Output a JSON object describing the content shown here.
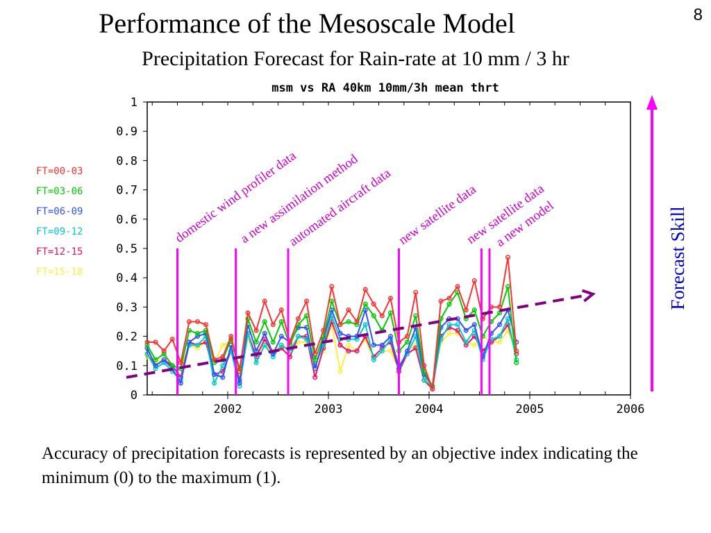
{
  "slide": {
    "title": "Performance of the Mesoscale Model",
    "subtitle": "Precipitation Forecast for Rain-rate at 10 mm / 3 hr",
    "page_number": "8",
    "caption": "Accuracy of precipitation forecasts is represented by an objective index indicating the minimum (0) to the maximum (1).",
    "forecast_skill_label": "Forecast Skill",
    "colors": {
      "events": "#ff00ff",
      "annotation": "#cc00cc",
      "trend": "#800080",
      "skill_arrow": "#ff00ff",
      "skill_text": "#0000cc"
    }
  },
  "chart_data": {
    "type": "line",
    "title": "msm vs RA 40km 10mm/3h mean thrt",
    "xlim": [
      2001.2,
      2006.0
    ],
    "ylim": [
      0,
      1
    ],
    "x_ticks": [
      2002,
      2003,
      2004,
      2005,
      2006
    ],
    "y_ticks": [
      0,
      0.1,
      0.2,
      0.3,
      0.4,
      0.5,
      0.6,
      0.7,
      0.8,
      0.9,
      1
    ],
    "legend_position": "left",
    "x": [
      2001.2,
      2001.283,
      2001.367,
      2001.45,
      2001.533,
      2001.617,
      2001.7,
      2001.783,
      2001.867,
      2001.95,
      2002.033,
      2002.117,
      2002.2,
      2002.283,
      2002.367,
      2002.45,
      2002.533,
      2002.617,
      2002.7,
      2002.783,
      2002.867,
      2002.95,
      2003.033,
      2003.117,
      2003.2,
      2003.283,
      2003.367,
      2003.45,
      2003.533,
      2003.617,
      2003.7,
      2003.783,
      2003.867,
      2003.95,
      2004.033,
      2004.117,
      2004.2,
      2004.283,
      2004.367,
      2004.45,
      2004.533,
      2004.617,
      2004.7,
      2004.783,
      2004.867
    ],
    "series": [
      {
        "name": "FT=00-03",
        "color": "#ff3030",
        "values": [
          0.18,
          0.18,
          0.15,
          0.19,
          0.11,
          0.25,
          0.25,
          0.24,
          0.12,
          0.13,
          0.2,
          0.08,
          0.28,
          0.22,
          0.32,
          0.24,
          0.29,
          0.18,
          0.26,
          0.32,
          0.14,
          0.22,
          0.37,
          0.24,
          0.29,
          0.25,
          0.36,
          0.31,
          0.27,
          0.33,
          0.18,
          0.2,
          0.35,
          0.1,
          0.02,
          0.32,
          0.33,
          0.37,
          0.29,
          0.39,
          0.26,
          0.3,
          0.3,
          0.47,
          0.15
        ]
      },
      {
        "name": "FT=03-06",
        "color": "#00cc00",
        "values": [
          0.17,
          0.12,
          0.14,
          0.1,
          0.09,
          0.22,
          0.21,
          0.22,
          0.11,
          0.12,
          0.19,
          0.09,
          0.26,
          0.18,
          0.25,
          0.18,
          0.25,
          0.17,
          0.24,
          0.27,
          0.12,
          0.2,
          0.32,
          0.24,
          0.25,
          0.24,
          0.31,
          0.27,
          0.22,
          0.28,
          0.15,
          0.18,
          0.27,
          0.08,
          0.03,
          0.26,
          0.31,
          0.35,
          0.26,
          0.29,
          0.2,
          0.25,
          0.28,
          0.37,
          0.11
        ]
      },
      {
        "name": "FT=06-09",
        "color": "#3050ff",
        "values": [
          0.16,
          0.1,
          0.12,
          0.09,
          0.04,
          0.18,
          0.2,
          0.21,
          0.07,
          0.06,
          0.17,
          0.04,
          0.24,
          0.15,
          0.21,
          0.14,
          0.2,
          0.18,
          0.23,
          0.23,
          0.09,
          0.19,
          0.29,
          0.21,
          0.2,
          0.2,
          0.29,
          0.17,
          0.17,
          0.2,
          0.09,
          0.15,
          0.23,
          0.07,
          0.03,
          0.23,
          0.26,
          0.26,
          0.22,
          0.24,
          0.13,
          0.21,
          0.24,
          0.29,
          0.18
        ]
      },
      {
        "name": "FT=09-12",
        "color": "#00cccc",
        "values": [
          0.14,
          0.09,
          0.11,
          0.08,
          0.05,
          0.17,
          0.17,
          0.2,
          0.04,
          0.1,
          0.15,
          0.03,
          0.21,
          0.11,
          0.17,
          0.13,
          0.17,
          0.15,
          0.2,
          0.19,
          0.1,
          0.17,
          0.27,
          0.19,
          0.19,
          0.19,
          0.24,
          0.12,
          0.15,
          0.19,
          0.1,
          0.14,
          0.2,
          0.05,
          0.03,
          0.19,
          0.24,
          0.24,
          0.18,
          0.22,
          0.12,
          0.19,
          0.2,
          0.26,
          0.12
        ]
      },
      {
        "name": "FT=12-15",
        "color": "#ee1060",
        "values": [
          0.14,
          0.1,
          0.12,
          0.1,
          0.06,
          0.18,
          0.17,
          0.18,
          0.07,
          0.08,
          0.15,
          0.05,
          0.21,
          0.13,
          0.19,
          0.14,
          0.16,
          0.13,
          0.2,
          0.2,
          0.06,
          0.16,
          0.25,
          0.17,
          0.15,
          0.15,
          0.2,
          0.13,
          0.16,
          0.18,
          0.08,
          0.14,
          0.16,
          0.05,
          0.02,
          0.2,
          0.23,
          0.22,
          0.17,
          0.2,
          0.15,
          0.18,
          0.2,
          0.24,
          0.14
        ]
      },
      {
        "name": "FT=15-18",
        "color": "#ffee40",
        "values": [
          0.13,
          0.11,
          0.12,
          0.1,
          0.09,
          0.17,
          0.16,
          0.18,
          0.11,
          0.17,
          0.18,
          0.06,
          0.19,
          0.14,
          0.17,
          0.15,
          0.17,
          0.15,
          0.18,
          0.18,
          0.12,
          0.15,
          0.24,
          0.08,
          0.17,
          0.15,
          0.19,
          0.12,
          0.15,
          0.15,
          0.09,
          0.15,
          0.17,
          0.06,
          0.03,
          0.18,
          0.21,
          0.21,
          0.18,
          0.17,
          0.2,
          0.18,
          0.18,
          0.22,
          0.14
        ]
      }
    ],
    "events": [
      {
        "x": 2001.5,
        "label": "domestic wind profiler data"
      },
      {
        "x": 2002.08,
        "label": "a new assimilation method"
      },
      {
        "x": 2002.6,
        "label": "automated aircraft data"
      },
      {
        "x": 2003.7,
        "label": "new satellite data"
      },
      {
        "x": 2004.52,
        "labels": [
          "new satellite data",
          "a new model"
        ]
      },
      {
        "x": 2004.6
      }
    ],
    "trend": {
      "x": [
        2001.2,
        2005.6
      ],
      "y": [
        0.055,
        0.34
      ]
    }
  }
}
